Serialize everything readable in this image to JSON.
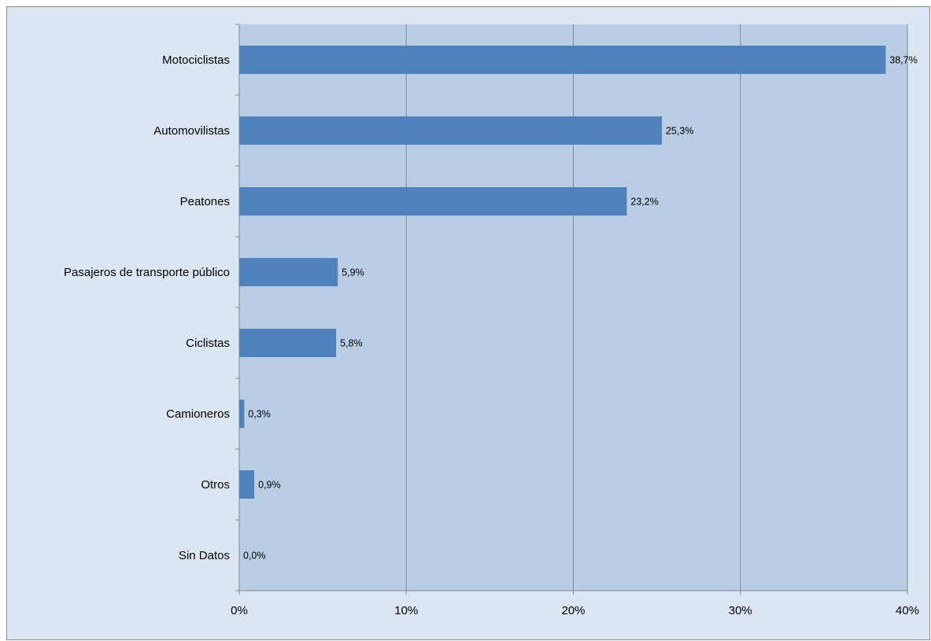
{
  "chart_data": {
    "type": "bar",
    "orientation": "horizontal",
    "categories": [
      "Motociclistas",
      "Automovilistas",
      "Peatones",
      "Pasajeros de transporte público",
      "Ciclistas",
      "Camioneros",
      "Otros",
      "Sin Datos"
    ],
    "values": [
      38.7,
      25.3,
      23.2,
      5.9,
      5.8,
      0.3,
      0.9,
      0.0
    ],
    "data_labels": [
      "38,7%",
      "25,3%",
      "23,2%",
      "5,9%",
      "5,8%",
      "0,3%",
      "0,9%",
      "0,0%"
    ],
    "x_ticks": [
      0,
      10,
      20,
      30,
      40
    ],
    "x_tick_labels": [
      "0%",
      "10%",
      "20%",
      "30%",
      "40%"
    ],
    "xlim": [
      0,
      40
    ],
    "grid": "vertical",
    "legend": "none",
    "title": "",
    "xlabel": "",
    "ylabel": ""
  },
  "colors": {
    "bar": "#4f81bd",
    "plot_area": "#b9cde5",
    "chart_area": "#dce6f2",
    "gridline": "#868686",
    "axis": "#868686"
  }
}
